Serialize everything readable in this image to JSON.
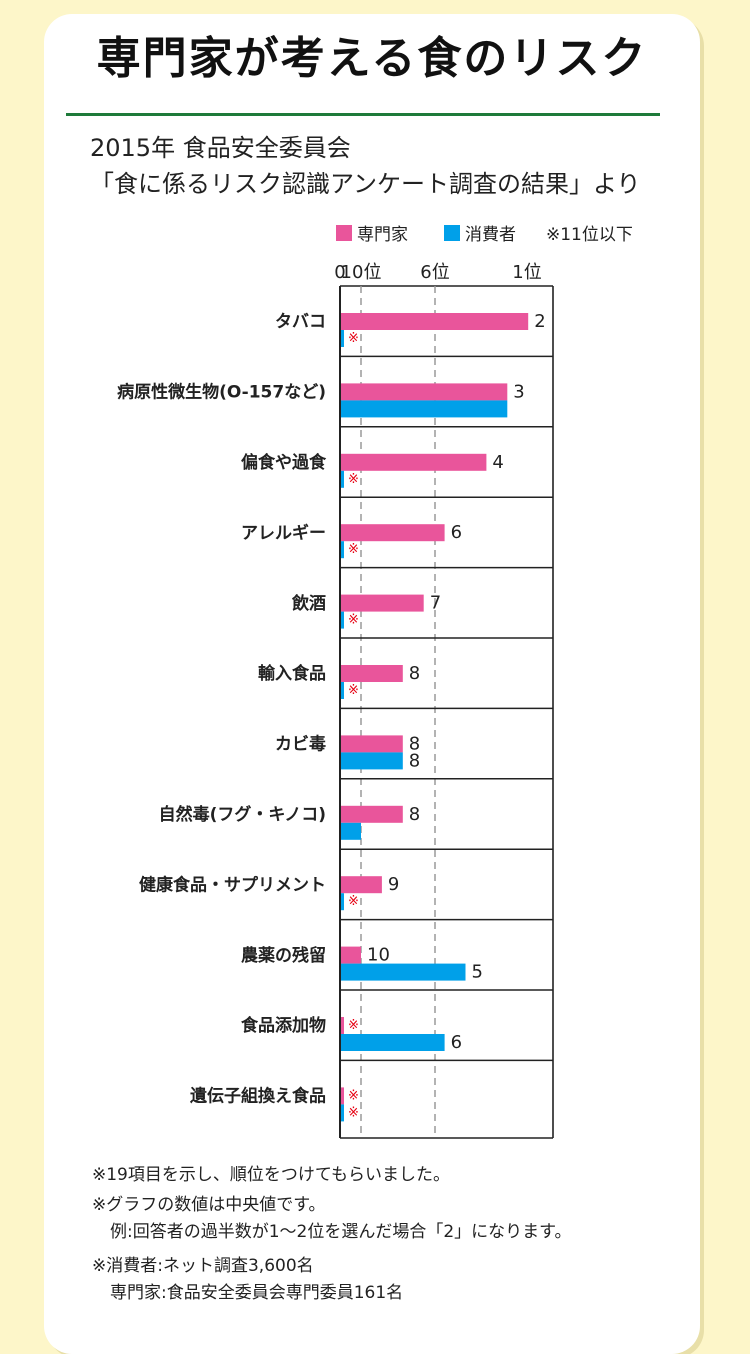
{
  "page": {
    "title": "専門家が考える食のリスク",
    "subtitle1": "2015年 食品安全委員会",
    "subtitle2": "「食に係るリスク認識アンケート調査の結果」より"
  },
  "legend": {
    "expert": "専門家",
    "consumer": "消費者",
    "below_label": "※11位以下"
  },
  "colors": {
    "expert": "#e9559b",
    "consumer": "#00a0e9",
    "marker": "#e60012",
    "accent_rule": "#1e7a3a",
    "background": "#fdf6c9"
  },
  "chart_data": {
    "type": "bar",
    "orientation": "horizontal",
    "axis_ticks": [
      {
        "label": "0",
        "rank": null
      },
      {
        "label": "10位",
        "rank": 10
      },
      {
        "label": "6位",
        "rank": 6
      },
      {
        "label": "1位",
        "rank": 1
      }
    ],
    "axis_note": "rank axis: 1位 is highest risk (longest bar); values beyond 10位 shown as ※ (11位以下)",
    "marker_text": "※",
    "categories": [
      "タバコ",
      "病原性微生物(O-157など)",
      "偏食や過食",
      "アレルギー",
      "飲酒",
      "輸入食品",
      "カビ毒",
      "自然毒(フグ・キノコ)",
      "健康食品・サプリメント",
      "農薬の残留",
      "食品添加物",
      "遺伝子組換え食品"
    ],
    "series": [
      {
        "name": "専門家",
        "values": [
          2,
          3,
          4,
          6,
          7,
          8,
          8,
          8,
          9,
          10,
          null,
          null
        ],
        "labels": [
          "2",
          "3",
          "4",
          "6",
          "7",
          "8",
          "8",
          "8",
          "9",
          "10",
          "※",
          "※"
        ]
      },
      {
        "name": "消費者",
        "values": [
          null,
          3,
          null,
          null,
          null,
          null,
          8,
          10,
          null,
          5,
          6,
          null
        ],
        "labels": [
          "※",
          "",
          "※",
          "※",
          "※",
          "※",
          "8",
          "",
          "※",
          "5",
          "6",
          "※"
        ]
      }
    ]
  },
  "notes": {
    "n1": "※19項目を示し、順位をつけてもらいました。",
    "n2": "※グラフの数値は中央値です。",
    "n3": "例:回答者の過半数が1〜2位を選んだ場合「2」になります。",
    "n4": "※消費者:ネット調査3,600名",
    "n5": "専門家:食品安全委員会専門委員161名"
  }
}
